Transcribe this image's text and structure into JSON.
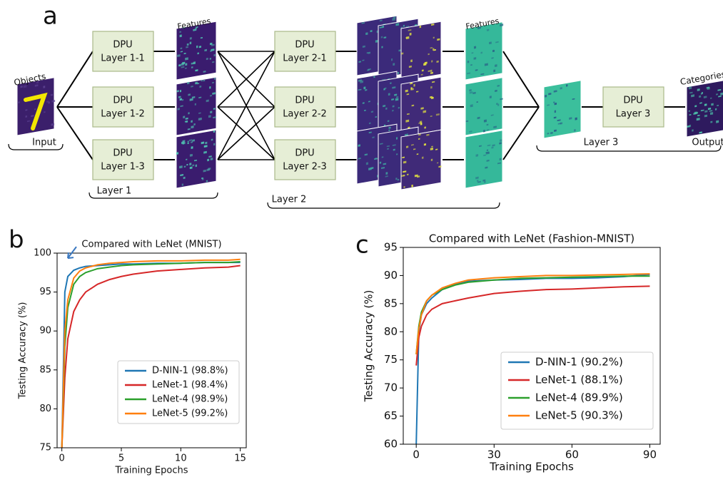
{
  "diagram": {
    "panel_label": "a",
    "input_title": "Objects",
    "input_label": "Input",
    "dpus": [
      [
        "DPU",
        "Layer 1-1"
      ],
      [
        "DPU",
        "Layer 1-2"
      ],
      [
        "DPU",
        "Layer 1-3"
      ],
      [
        "DPU",
        "Layer 2-1"
      ],
      [
        "DPU",
        "Layer 2-2"
      ],
      [
        "DPU",
        "Layer 2-3"
      ],
      [
        "DPU",
        "Layer 3"
      ]
    ],
    "features_labels": [
      "Features",
      "Features"
    ],
    "categories_label": "Categories",
    "layer_labels": [
      "Layer 1",
      "Layer 2",
      "Layer 3"
    ],
    "output_label": "Output"
  },
  "chart_data": [
    {
      "panel_label": "b",
      "type": "line",
      "title": "Compared with LeNet (MNIST)",
      "x_label": "Training Epochs",
      "y_label": "Testing Accuracy (%)",
      "x": [
        0,
        0.25,
        0.5,
        1,
        1.5,
        2,
        3,
        4,
        5,
        6,
        8,
        10,
        12,
        14,
        15
      ],
      "series": [
        {
          "name": "D-NIN-1 (98.8%)",
          "color": "#1f77b4",
          "values": [
            75,
            95,
            97,
            97.8,
            98.1,
            98.3,
            98.4,
            98.5,
            98.6,
            98.6,
            98.7,
            98.7,
            98.8,
            98.8,
            98.8
          ]
        },
        {
          "name": "LeNet-1 (98.4%)",
          "color": "#d62728",
          "values": [
            75,
            84,
            89,
            92.5,
            94,
            95,
            96,
            96.6,
            97,
            97.3,
            97.7,
            97.9,
            98.1,
            98.2,
            98.4
          ]
        },
        {
          "name": "LeNet-4 (98.9%)",
          "color": "#2ca02c",
          "values": [
            75,
            88,
            93,
            96,
            97,
            97.5,
            98,
            98.2,
            98.4,
            98.5,
            98.6,
            98.7,
            98.8,
            98.8,
            98.9
          ]
        },
        {
          "name": "LeNet-5 (99.2%)",
          "color": "#ff7f0e",
          "values": [
            75,
            90,
            94,
            96.8,
            97.7,
            98.1,
            98.5,
            98.7,
            98.8,
            98.9,
            99,
            99,
            99.1,
            99.1,
            99.2
          ]
        }
      ],
      "xlim": [
        -0.4,
        15.5
      ],
      "ylim": [
        75,
        100
      ],
      "xticks": [
        0,
        5,
        10,
        15
      ],
      "yticks": [
        75,
        80,
        85,
        90,
        95,
        100
      ],
      "legend": "lower right",
      "grid": false
    },
    {
      "panel_label": "c",
      "type": "line",
      "title": "Compared with LeNet (Fashion-MNIST)",
      "x_label": "Training Epochs",
      "y_label": "Testing Accuracy (%)",
      "x": [
        0,
        1,
        2,
        4,
        6,
        10,
        15,
        20,
        30,
        40,
        50,
        60,
        70,
        80,
        90
      ],
      "series": [
        {
          "name": "D-NIN-1 (90.2%)",
          "color": "#1f77b4",
          "values": [
            60,
            80,
            83,
            85,
            86,
            87.5,
            88.5,
            89,
            89.2,
            89.3,
            89.5,
            89.5,
            89.6,
            89.8,
            90.2
          ]
        },
        {
          "name": "LeNet-1 (88.1%)",
          "color": "#d62728",
          "values": [
            74,
            79,
            81,
            83,
            84,
            85,
            85.5,
            86,
            86.8,
            87.2,
            87.5,
            87.6,
            87.8,
            88,
            88.1
          ]
        },
        {
          "name": "LeNet-4 (89.9%)",
          "color": "#2ca02c",
          "values": [
            76,
            81,
            83.5,
            85.5,
            86.5,
            87.5,
            88.3,
            88.8,
            89.2,
            89.5,
            89.6,
            89.7,
            89.8,
            89.9,
            89.9
          ]
        },
        {
          "name": "LeNet-5 (90.3%)",
          "color": "#ff7f0e",
          "values": [
            76,
            80.5,
            83,
            85.5,
            86.5,
            87.8,
            88.6,
            89.2,
            89.6,
            89.8,
            90,
            90,
            90.1,
            90.2,
            90.3
          ]
        }
      ],
      "xlim": [
        -5,
        94
      ],
      "ylim": [
        60,
        95
      ],
      "xticks": [
        0,
        30,
        60,
        90
      ],
      "yticks": [
        60,
        65,
        70,
        75,
        80,
        85,
        90,
        95
      ],
      "legend": "lower right",
      "grid": false
    }
  ]
}
